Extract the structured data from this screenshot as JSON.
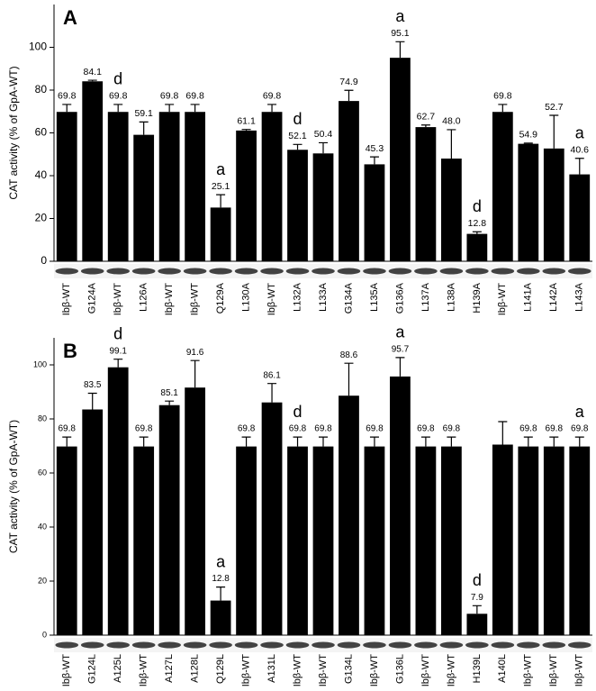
{
  "chart_data": [
    {
      "type": "bar",
      "label": "A",
      "y_label": "CAT activity (% of GpA-WT)",
      "color": "#000000",
      "categories": [
        "Ibβ-WT",
        "G124A",
        "Ibβ-WT",
        "L126A",
        "Ibβ-WT",
        "Ibβ-WT",
        "Q129A",
        "L130A",
        "Ibβ-WT",
        "L132A",
        "L133A",
        "G134A",
        "L135A",
        "G136A",
        "L137A",
        "L138A",
        "H139A",
        "Ibβ-WT",
        "L141A",
        "L142A",
        "L143A"
      ],
      "values": [
        69.8,
        84.1,
        69.8,
        59.1,
        69.8,
        69.8,
        25.1,
        61.1,
        69.8,
        52.1,
        50.4,
        74.9,
        45.3,
        95.1,
        62.7,
        48.0,
        12.8,
        69.8,
        54.9,
        52.7,
        40.6
      ],
      "value_labels": [
        "69.8",
        "84.1",
        "69.8",
        "59.1",
        "69.8",
        "69.8",
        "25.1",
        "61.1",
        "69.8",
        "52.1",
        "50.4",
        "74.9",
        "45.3",
        "95.1",
        "62.7",
        "48.0",
        "12.8",
        "69.8",
        "54.9",
        "52.7",
        "40.6"
      ],
      "errors": [
        3.5,
        0.5,
        3.5,
        6,
        3.5,
        3.5,
        6,
        0.5,
        3.5,
        2.5,
        5,
        5,
        3.5,
        7.5,
        1,
        13.5,
        1,
        3.5,
        0.3,
        15.5,
        7.5
      ],
      "annotations": [
        null,
        null,
        "d",
        null,
        null,
        null,
        "a",
        null,
        null,
        "d",
        null,
        null,
        null,
        "a",
        null,
        null,
        "d",
        null,
        null,
        null,
        "a"
      ],
      "ylim": [
        0,
        120
      ],
      "yticks": [
        0,
        20,
        40,
        60,
        80,
        100
      ]
    },
    {
      "type": "bar",
      "label": "B",
      "y_label": "CAT activity (% of GpA-WT)",
      "color": "#000000",
      "categories": [
        "Ibβ-WT",
        "G124L",
        "A125L",
        "Ibβ-WT",
        "A127L",
        "A128L",
        "Q129L",
        "Ibβ-WT",
        "A131L",
        "Ibβ-WT",
        "Ibβ-WT",
        "G134L",
        "Ibβ-WT",
        "G136L",
        "Ibβ-WT",
        "Ibβ-WT",
        "H139L",
        "A140L",
        "Ibβ-WT",
        "Ibβ-WT",
        "Ibβ-WT"
      ],
      "values": [
        69.8,
        83.5,
        99.1,
        69.8,
        85.1,
        91.6,
        12.8,
        69.8,
        86.1,
        69.8,
        69.8,
        88.6,
        69.8,
        95.7,
        69.8,
        69.8,
        7.9,
        70.5,
        69.8,
        69.8,
        69.8
      ],
      "value_labels": [
        "69.8",
        "83.5",
        "99.1",
        "69.8",
        "85.1",
        "91.6",
        "12.8",
        "69.8",
        "86.1",
        "69.8",
        "69.8",
        "88.6",
        "69.8",
        "95.7",
        "69.8",
        "69.8",
        "7.9",
        null,
        "69.8",
        "69.8",
        "69.8"
      ],
      "errors": [
        3.5,
        6,
        3,
        3.5,
        1.5,
        10,
        5,
        3.5,
        7,
        3.5,
        3.5,
        12,
        3.5,
        7,
        3.5,
        3.5,
        3,
        8.5,
        3.5,
        3.5,
        3.5
      ],
      "annotations": [
        null,
        null,
        "d",
        null,
        null,
        null,
        "a",
        null,
        null,
        "d",
        null,
        null,
        null,
        "a",
        null,
        null,
        "d",
        null,
        null,
        null,
        "a"
      ],
      "ylim": [
        0,
        110
      ],
      "yticks": [
        0,
        20,
        40,
        60,
        80,
        100
      ]
    }
  ]
}
